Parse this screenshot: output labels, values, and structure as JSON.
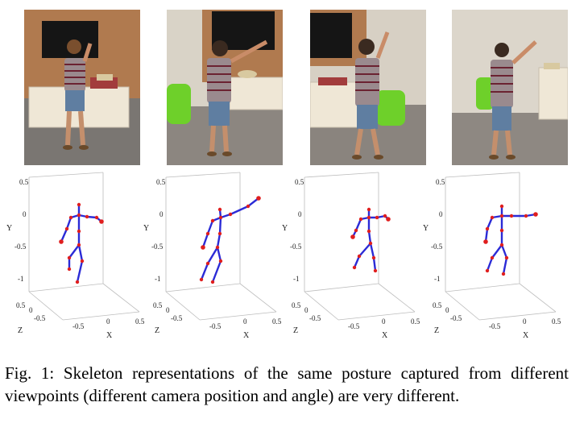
{
  "figure": {
    "caption": "Fig. 1: Skeleton representations of the same posture captured from different viewpoints (different camera position and angle) are very different."
  },
  "colors": {
    "bone": "#2b2bd6",
    "joint": "#e01e1e",
    "axis": "#b8b8b8"
  },
  "panels": [
    {
      "id": "view-1",
      "tick_y": [
        "0.5",
        "0",
        "-0.5",
        "-1"
      ],
      "tick_z": [
        "0.5",
        "0",
        "-0.5"
      ],
      "tick_x": [
        "-0.5",
        "0",
        "0.5"
      ],
      "label_x": "X",
      "label_y": "Y",
      "label_z": "Z"
    },
    {
      "id": "view-2",
      "tick_y": [
        "0.5",
        "0",
        "-0.5",
        "-1"
      ],
      "tick_z": [
        "0.5",
        "0",
        "-0.5"
      ],
      "tick_x": [
        "-0.5",
        "0",
        "0.5"
      ],
      "label_x": "X",
      "label_y": "Y",
      "label_z": "Z"
    },
    {
      "id": "view-3",
      "tick_y": [
        "0.5",
        "0",
        "-0.5",
        "-1"
      ],
      "tick_z": [
        "0.5",
        "0",
        "-0.5"
      ],
      "tick_x": [
        "-0.5",
        "0",
        "0.5"
      ],
      "label_x": "X",
      "label_y": "Y",
      "label_z": "Z"
    },
    {
      "id": "view-4",
      "tick_y": [
        "0.5",
        "0",
        "-0.5",
        "-1"
      ],
      "tick_z": [
        "0.5",
        "0",
        "-0.5"
      ],
      "tick_x": [
        "-0.5",
        "0",
        "0.5"
      ],
      "label_x": "X",
      "label_y": "Y",
      "label_z": "Z"
    }
  ]
}
